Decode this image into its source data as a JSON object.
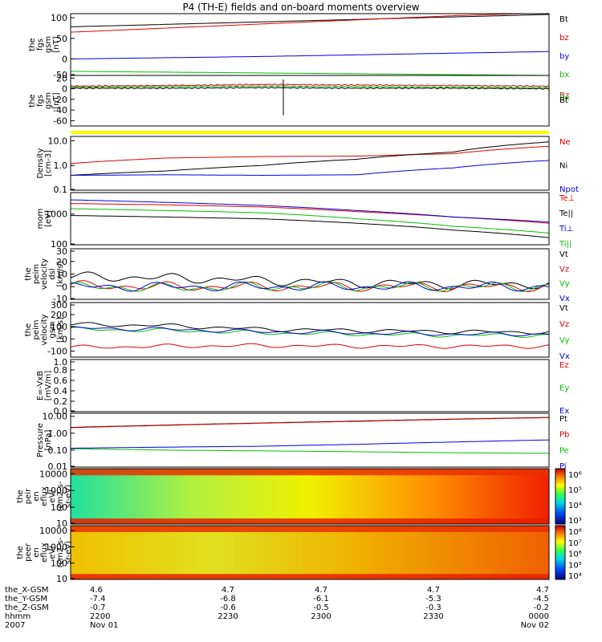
{
  "title": "P4 (TH-E) fields and on-board moments overview",
  "footer": {
    "rows": [
      {
        "label": "the_X-GSM",
        "values": [
          "4.6",
          "4.7",
          "4.7",
          "4.7",
          "4.7"
        ]
      },
      {
        "label": "the_Y-GSM",
        "values": [
          "-7.4",
          "-6.8",
          "-6.1",
          "-5.3",
          "-4.5"
        ]
      },
      {
        "label": "the_Z-GSM",
        "values": [
          "-0.7",
          "-0.6",
          "-0.5",
          "-0.3",
          "-0.2"
        ]
      },
      {
        "label": "hhmm",
        "values": [
          "2200",
          "2230",
          "2300",
          "2330",
          "0000"
        ]
      },
      {
        "label": "2007",
        "values": [
          "Nov 01",
          "",
          "",
          "",
          "Nov 02"
        ]
      }
    ]
  },
  "colors": {
    "black": "#000000",
    "red": "#e00000",
    "blue": "#0000e0",
    "green": "#00c000",
    "yellow": "#ffff00"
  },
  "chart_data": [
    {
      "type": "line",
      "id": "p1",
      "ylabel": [
        "the",
        "fgs",
        "gsm",
        "[nT]"
      ],
      "ylim": [
        -40,
        110
      ],
      "yticks": [
        "100",
        "50",
        "0",
        "-50"
      ],
      "series": [
        {
          "name": "Bt",
          "color": "#000000",
          "values": [
            78,
            84,
            90,
            96,
            102,
            108
          ]
        },
        {
          "name": "bz",
          "color": "#e00000",
          "values": [
            65,
            75,
            85,
            95,
            105,
            112
          ]
        },
        {
          "name": "by",
          "color": "#0000e0",
          "values": [
            0,
            3,
            6,
            10,
            14,
            18
          ]
        },
        {
          "name": "bx",
          "color": "#00c000",
          "values": [
            -30,
            -32,
            -34,
            -36,
            -38,
            -40
          ]
        }
      ]
    },
    {
      "type": "line",
      "id": "p2",
      "ylabel": [
        "the",
        "fgs",
        "gsm",
        "[nT]"
      ],
      "ylim": [
        -70,
        25
      ],
      "yticks": [
        "20",
        "0",
        "-20",
        "-40",
        "-60"
      ],
      "series": [
        {
          "name": "Bz",
          "color": "#e00000",
          "values": [
            5,
            6,
            8,
            7,
            6,
            5
          ]
        },
        {
          "name": "Bx",
          "color": "#00c000",
          "values": [
            3,
            4,
            5,
            4,
            3,
            2
          ]
        },
        {
          "name": "Bt",
          "color": "#000000",
          "values": [
            1,
            1,
            2,
            1,
            1,
            0
          ]
        }
      ]
    },
    {
      "type": "line",
      "id": "p3",
      "ylabel": [
        "Density",
        "[cm-3]"
      ],
      "ylim": [
        0.1,
        15
      ],
      "yticks": [
        "10.0",
        "1.0",
        "0.1"
      ],
      "series": [
        {
          "name": "Ne",
          "color": "#e00000",
          "values": [
            1.2,
            2.0,
            2.3,
            2.4,
            3.0,
            6.0
          ]
        },
        {
          "name": "Ni",
          "color": "#000000",
          "values": [
            0.4,
            0.6,
            1.0,
            1.8,
            3.5,
            9.0
          ]
        },
        {
          "name": "Npot",
          "color": "#0000e0",
          "values": [
            0.4,
            0.42,
            0.4,
            0.42,
            0.8,
            1.6
          ]
        }
      ]
    },
    {
      "type": "line",
      "id": "p4",
      "ylabel": [
        "mom",
        "[eV]"
      ],
      "ylim": [
        100,
        5000
      ],
      "yticks": [
        "1000",
        "100"
      ],
      "series": [
        {
          "name": "Te⊥",
          "color": "#e00000",
          "values": [
            2200,
            2000,
            1700,
            1200,
            800,
            500
          ]
        },
        {
          "name": "Te||",
          "color": "#000000",
          "values": [
            900,
            800,
            700,
            500,
            300,
            170
          ]
        },
        {
          "name": "Ti⊥",
          "color": "#0000e0",
          "values": [
            2900,
            2400,
            1900,
            1300,
            800,
            550
          ]
        },
        {
          "name": "Ti||",
          "color": "#00c000",
          "values": [
            1500,
            1300,
            1100,
            700,
            400,
            240
          ]
        }
      ]
    },
    {
      "type": "line",
      "id": "p5",
      "ylabel": [
        "the",
        "peim",
        "velocity",
        "dsl",
        "[km/s]"
      ],
      "ylim": [
        -10,
        30
      ],
      "yticks": [
        "30",
        "20",
        "10",
        "0",
        "-10"
      ],
      "series": [
        {
          "name": "Vt",
          "color": "#000000",
          "values": [
            8,
            7,
            5,
            3,
            2,
            2
          ]
        },
        {
          "name": "Vz",
          "color": "#e00000",
          "values": [
            1,
            0,
            0,
            0,
            0,
            0
          ]
        },
        {
          "name": "Vy",
          "color": "#00c000",
          "values": [
            0,
            -1,
            0,
            0,
            0,
            0
          ]
        },
        {
          "name": "Vx",
          "color": "#0000e0",
          "values": [
            0,
            0,
            0,
            0,
            0,
            0
          ]
        }
      ]
    },
    {
      "type": "line",
      "id": "p6",
      "ylabel": [
        "the",
        "peim",
        "velocity",
        "gsm",
        "[km/s]"
      ],
      "ylim": [
        -150,
        300
      ],
      "yticks": [
        "300",
        "200",
        "100",
        "0",
        "-100"
      ],
      "series": [
        {
          "name": "Vt",
          "color": "#000000",
          "values": [
            120,
            110,
            80,
            70,
            60,
            55
          ]
        },
        {
          "name": "Vz",
          "color": "#e00000",
          "values": [
            -70,
            -60,
            -55,
            -60,
            -60,
            -60
          ]
        },
        {
          "name": "Vy",
          "color": "#00c000",
          "values": [
            80,
            70,
            50,
            40,
            30,
            30
          ]
        },
        {
          "name": "Vx",
          "color": "#0000e0",
          "values": [
            90,
            80,
            60,
            50,
            40,
            40
          ]
        }
      ]
    },
    {
      "type": "line",
      "id": "p7",
      "ylabel": [
        "E=-VxB",
        "[mV/m]"
      ],
      "ylim": [
        0,
        1
      ],
      "yticks": [
        "1.0",
        "0.8",
        "0.6",
        "0.4",
        "0.2",
        "0.0"
      ],
      "series": [
        {
          "name": "Ez",
          "color": "#e00000",
          "values": []
        },
        {
          "name": "Ey",
          "color": "#00c000",
          "values": []
        },
        {
          "name": "Ex",
          "color": "#0000e0",
          "values": []
        }
      ]
    },
    {
      "type": "line",
      "id": "p8",
      "ylabel": [
        "Pressure",
        "[nPa]"
      ],
      "ylim": [
        0.01,
        15
      ],
      "yticks": [
        "10.00",
        "1.00",
        "0.10",
        "0.01"
      ],
      "series": [
        {
          "name": "Pt",
          "color": "#000000",
          "values": [
            2.2,
            3.0,
            4.0,
            5.2,
            6.8,
            8.5
          ]
        },
        {
          "name": "Pb",
          "color": "#e00000",
          "values": [
            2.1,
            2.9,
            3.9,
            5.0,
            6.6,
            8.3
          ]
        },
        {
          "name": "Pe",
          "color": "#00c000",
          "values": [
            0.12,
            0.1,
            0.09,
            0.08,
            0.07,
            0.065
          ]
        },
        {
          "name": "Pi",
          "color": "#0000e0",
          "values": [
            0.13,
            0.15,
            0.17,
            0.22,
            0.3,
            0.4
          ]
        }
      ]
    },
    {
      "type": "heatmap",
      "id": "p9",
      "ylabel": [
        "the",
        "peir",
        "en",
        "eflux",
        "eV/",
        "(cm2-s-",
        "sr-eV)"
      ],
      "ylim": [
        10,
        20000
      ],
      "yticks": [
        "10000",
        "1000",
        "100",
        "10"
      ],
      "colorbar": {
        "ticks": [
          "10⁶",
          "10⁵",
          "10⁴",
          "10³"
        ]
      }
    },
    {
      "type": "heatmap",
      "id": "p10",
      "ylabel": [
        "the",
        "peer",
        "en",
        "eflux",
        "eV/",
        "(cm2-s-",
        "sr-eV)"
      ],
      "ylim": [
        10,
        20000
      ],
      "yticks": [
        "10000",
        "1000",
        "100",
        "10"
      ],
      "colorbar": {
        "ticks": [
          "10⁸",
          "10⁷",
          "10⁶",
          "10⁵",
          "10⁴"
        ]
      }
    }
  ]
}
